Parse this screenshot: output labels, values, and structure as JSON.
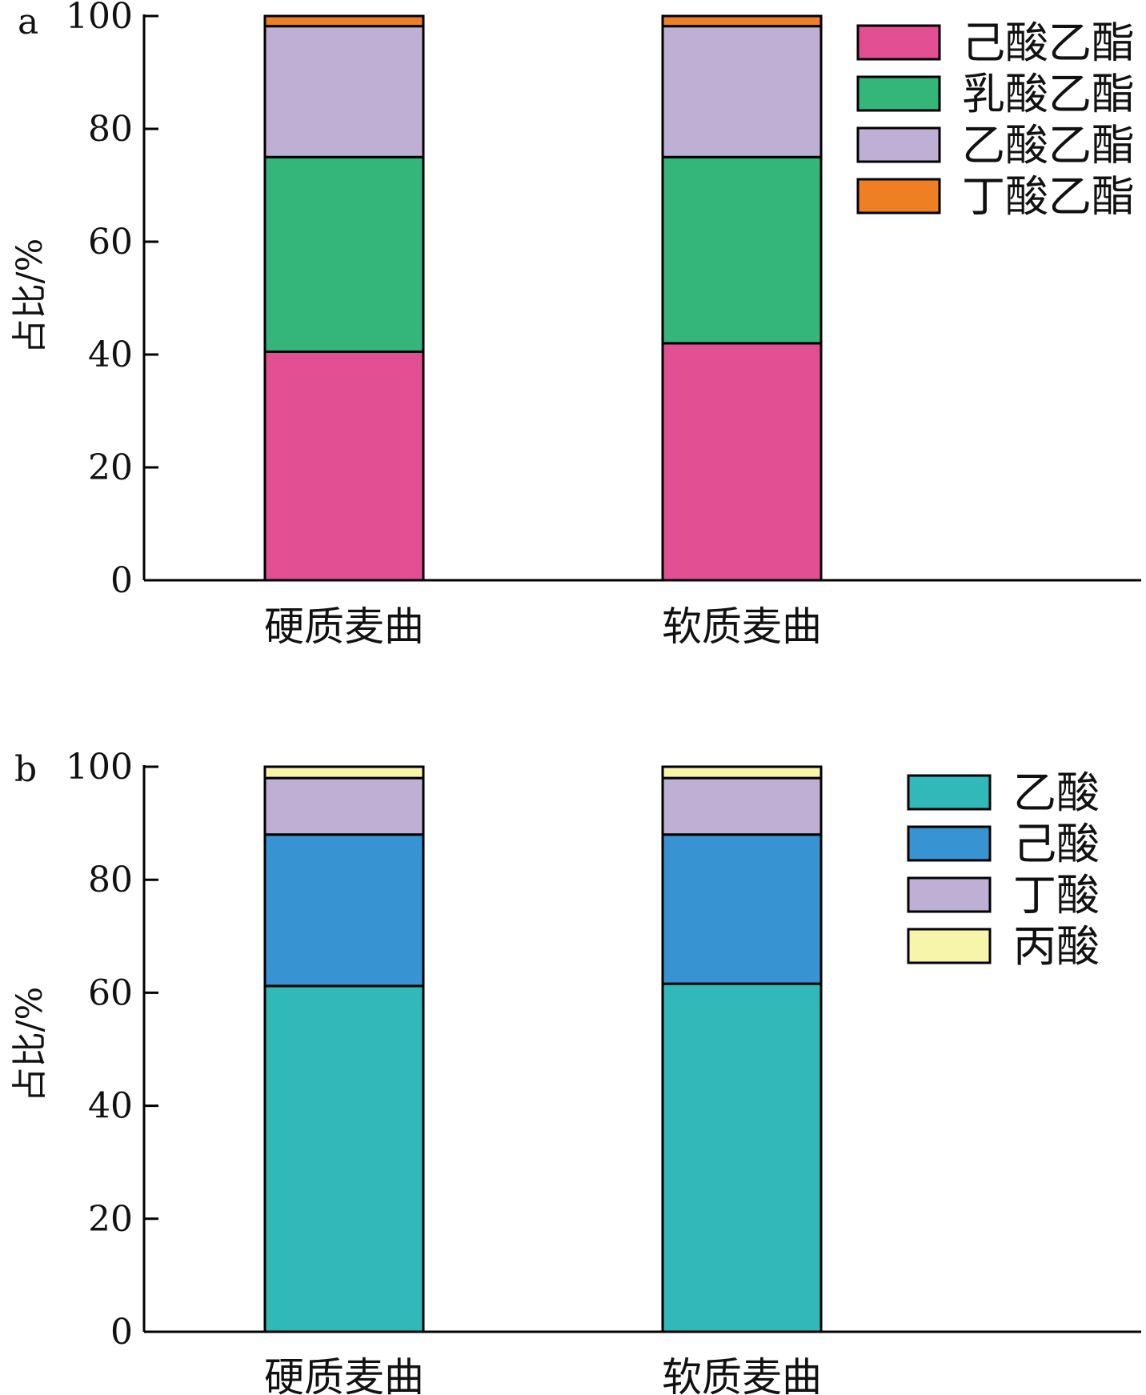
{
  "chart_data": [
    {
      "panel": "a",
      "type": "bar",
      "stacked": true,
      "categories": [
        "硬质麦曲",
        "软质麦曲"
      ],
      "ylabel": "占比/%",
      "xlabel": "",
      "ylim": [
        0,
        100
      ],
      "yticks": [
        "0",
        "20",
        "40",
        "60",
        "80",
        "100"
      ],
      "legend_position": "top-right",
      "series": [
        {
          "name": "己酸乙酯",
          "color": "#E34F93",
          "values": [
            40.5,
            42.0
          ]
        },
        {
          "name": "乳酸乙酯",
          "color": "#34B57A",
          "values": [
            34.5,
            33.0
          ]
        },
        {
          "name": "乙酸乙酯",
          "color": "#BEB0D4",
          "values": [
            23.2,
            23.2
          ]
        },
        {
          "name": "丁酸乙酯",
          "color": "#EE7F22",
          "values": [
            1.8,
            1.8
          ]
        }
      ]
    },
    {
      "panel": "b",
      "type": "bar",
      "stacked": true,
      "categories": [
        "硬质麦曲",
        "软质麦曲"
      ],
      "ylabel": "占比/%",
      "xlabel": "",
      "ylim": [
        0,
        100
      ],
      "yticks": [
        "0",
        "20",
        "40",
        "60",
        "80",
        "100"
      ],
      "legend_position": "top-right",
      "series": [
        {
          "name": "乙酸",
          "color": "#31B8B8",
          "values": [
            61.2,
            61.6
          ]
        },
        {
          "name": "己酸",
          "color": "#3893D3",
          "values": [
            26.8,
            26.4
          ]
        },
        {
          "name": "丁酸",
          "color": "#BEB0D4",
          "values": [
            10.0,
            10.0
          ]
        },
        {
          "name": "丙酸",
          "color": "#F7F5AA",
          "values": [
            2.0,
            2.0
          ]
        }
      ]
    }
  ]
}
